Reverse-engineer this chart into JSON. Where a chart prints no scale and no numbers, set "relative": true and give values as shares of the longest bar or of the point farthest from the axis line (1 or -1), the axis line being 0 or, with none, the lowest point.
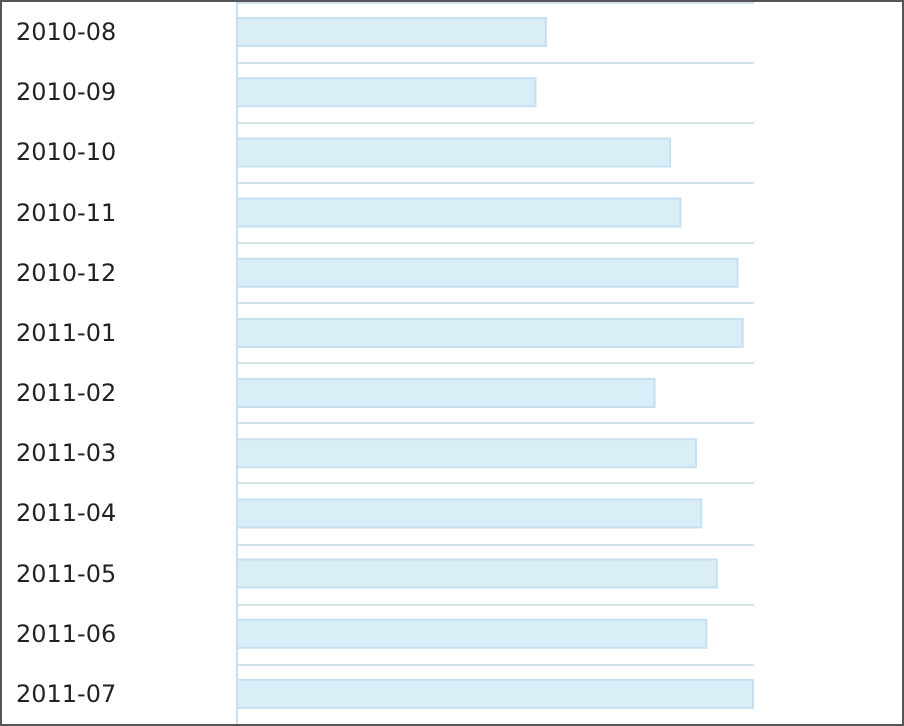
{
  "chart_data": {
    "type": "bar",
    "orientation": "horizontal",
    "relative": true,
    "grid": "y",
    "color": "#daeef8",
    "categories": [
      "2010-08",
      "2010-09",
      "2010-10",
      "2010-11",
      "2010-12",
      "2011-01",
      "2011-02",
      "2011-03",
      "2011-04",
      "2011-05",
      "2011-06",
      "2011-07"
    ],
    "values": [
      0.6,
      0.58,
      0.84,
      0.86,
      0.97,
      0.98,
      0.81,
      0.89,
      0.9,
      0.93,
      0.91,
      1
    ]
  }
}
